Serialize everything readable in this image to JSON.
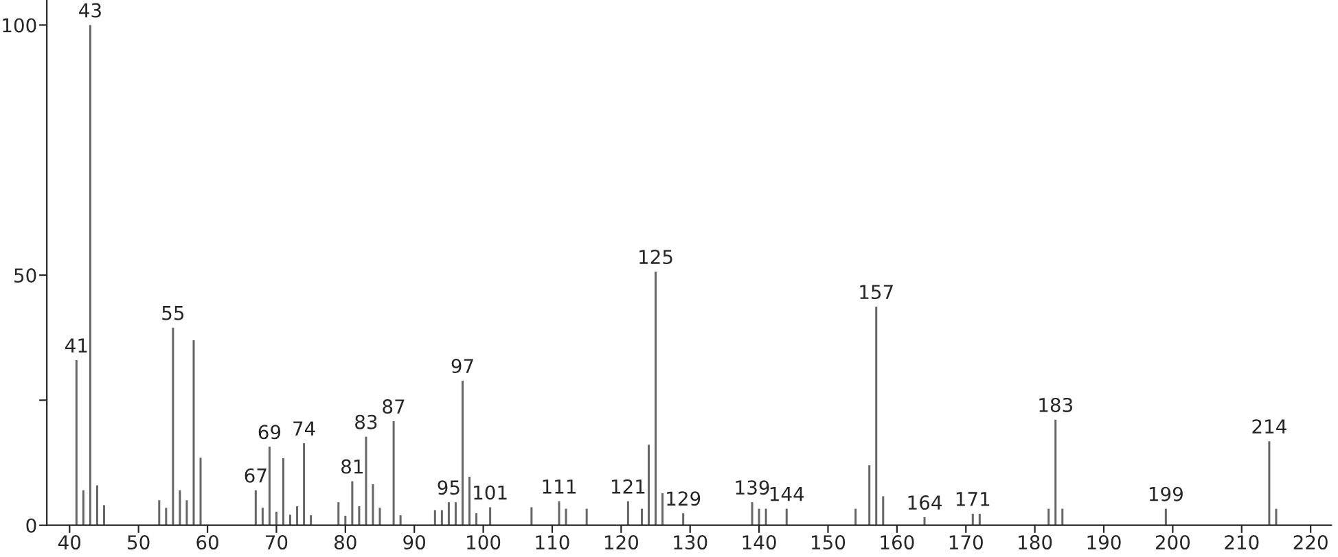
{
  "chart_data": {
    "type": "bar",
    "x": [
      41,
      42,
      43,
      44,
      45,
      53,
      54,
      55,
      56,
      57,
      58,
      59,
      67,
      68,
      69,
      70,
      71,
      72,
      73,
      74,
      75,
      79,
      80,
      81,
      82,
      83,
      84,
      85,
      87,
      88,
      93,
      94,
      95,
      96,
      97,
      98,
      99,
      101,
      107,
      111,
      112,
      115,
      121,
      123,
      124,
      125,
      126,
      129,
      139,
      140,
      141,
      144,
      154,
      156,
      157,
      158,
      164,
      171,
      172,
      182,
      183,
      184,
      199,
      214,
      215
    ],
    "values": [
      33,
      7,
      100,
      8,
      4,
      5,
      3.5,
      39.5,
      7,
      5,
      37,
      13.5,
      7,
      3.5,
      15.7,
      2.7,
      13.4,
      2.1,
      3.8,
      16.4,
      2,
      4.6,
      1.9,
      8.8,
      3.8,
      17.7,
      8.2,
      3.5,
      20.8,
      2,
      3,
      3,
      4.6,
      4.6,
      28.9,
      9.7,
      2.4,
      3.6,
      3.6,
      4.8,
      3.3,
      3.3,
      4.8,
      3.3,
      16.1,
      50.7,
      6.4,
      2.4,
      4.6,
      3.3,
      3.3,
      3.3,
      3.3,
      12,
      43.7,
      5.8,
      1.6,
      2.3,
      2.3,
      3.3,
      21.1,
      3.3,
      3.3,
      16.8,
      3.3
    ],
    "annotations": [
      {
        "text": "41",
        "x": 41,
        "y": 33
      },
      {
        "text": "43",
        "x": 43,
        "y": 100
      },
      {
        "text": "55",
        "x": 55,
        "y": 39.5
      },
      {
        "text": "67",
        "x": 67,
        "y": 7
      },
      {
        "text": "69",
        "x": 69,
        "y": 15.7
      },
      {
        "text": "74",
        "x": 74,
        "y": 16.4
      },
      {
        "text": "81",
        "x": 81,
        "y": 8.8
      },
      {
        "text": "83",
        "x": 83,
        "y": 17.7
      },
      {
        "text": "87",
        "x": 87,
        "y": 20.8
      },
      {
        "text": "95",
        "x": 95,
        "y": 4.6
      },
      {
        "text": "97",
        "x": 97,
        "y": 28.9
      },
      {
        "text": "101",
        "x": 101,
        "y": 3.6
      },
      {
        "text": "111",
        "x": 111,
        "y": 4.8
      },
      {
        "text": "121",
        "x": 121,
        "y": 4.8
      },
      {
        "text": "125",
        "x": 125,
        "y": 50.7
      },
      {
        "text": "129",
        "x": 129,
        "y": 2.4
      },
      {
        "text": "139",
        "x": 139,
        "y": 4.6
      },
      {
        "text": "144",
        "x": 144,
        "y": 3.3
      },
      {
        "text": "157",
        "x": 157,
        "y": 43.7
      },
      {
        "text": "164",
        "x": 164,
        "y": 1.6
      },
      {
        "text": "171",
        "x": 171,
        "y": 2.3
      },
      {
        "text": "183",
        "x": 183,
        "y": 21.1
      },
      {
        "text": "199",
        "x": 199,
        "y": 3.3
      },
      {
        "text": "214",
        "x": 214,
        "y": 16.8
      }
    ],
    "color": "#666666",
    "xlim": [
      36.7,
      223
    ],
    "xticks": [
      40,
      50,
      60,
      70,
      80,
      90,
      100,
      110,
      120,
      130,
      140,
      150,
      160,
      170,
      180,
      190,
      200,
      210,
      220
    ],
    "ylim": [
      0,
      105
    ],
    "yticks": [
      0,
      {
        "value": 25,
        "label": null
      },
      50,
      100
    ]
  }
}
